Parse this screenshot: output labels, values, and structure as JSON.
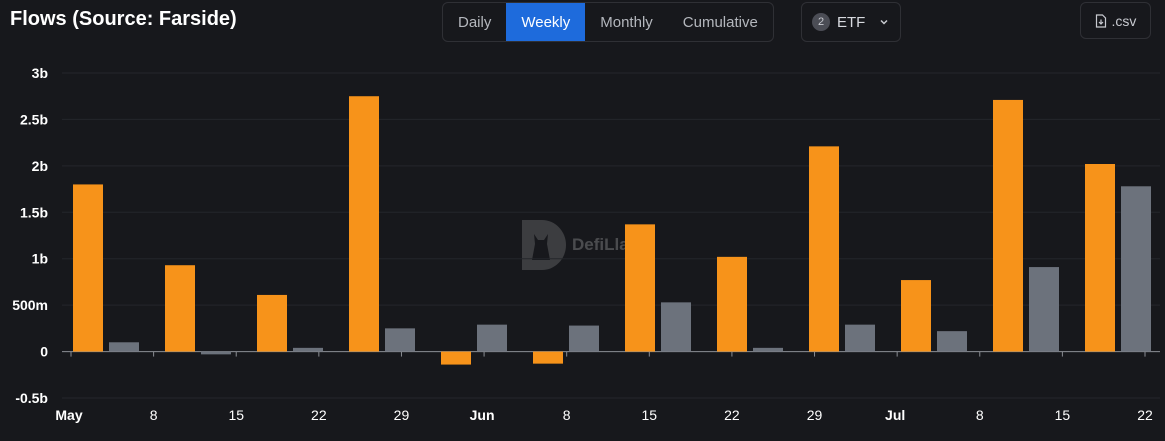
{
  "title": "Flows (Source: Farside)",
  "tabs": [
    {
      "label": "Daily",
      "active": false
    },
    {
      "label": "Weekly",
      "active": true
    },
    {
      "label": "Monthly",
      "active": false
    },
    {
      "label": "Cumulative",
      "active": false
    }
  ],
  "filter": {
    "count": "2",
    "label": "ETF",
    "icon": "chevron-down-icon"
  },
  "export": {
    "label": ".csv",
    "icon": "file-download-icon"
  },
  "watermark": "DefiLlama",
  "colors": {
    "series1": "#f7931a",
    "series2": "#6c727c",
    "background": "#17181c",
    "accent": "#1e6bdc"
  },
  "chart_data": {
    "type": "bar",
    "ylim": [
      -0.5,
      3
    ],
    "y_ticks": [
      {
        "value": 3,
        "label": "3b"
      },
      {
        "value": 2.5,
        "label": "2.5b"
      },
      {
        "value": 2,
        "label": "2b"
      },
      {
        "value": 1.5,
        "label": "1.5b"
      },
      {
        "value": 1,
        "label": "1b"
      },
      {
        "value": 0.5,
        "label": "500m"
      },
      {
        "value": 0,
        "label": "0"
      },
      {
        "value": -0.5,
        "label": "-0.5b"
      }
    ],
    "x_ticks": [
      {
        "label": "May",
        "bold": true
      },
      {
        "label": "8",
        "bold": false
      },
      {
        "label": "15",
        "bold": false
      },
      {
        "label": "22",
        "bold": false
      },
      {
        "label": "29",
        "bold": false
      },
      {
        "label": "Jun",
        "bold": true
      },
      {
        "label": "8",
        "bold": false
      },
      {
        "label": "15",
        "bold": false
      },
      {
        "label": "22",
        "bold": false
      },
      {
        "label": "29",
        "bold": false
      },
      {
        "label": "Jul",
        "bold": true
      },
      {
        "label": "8",
        "bold": false
      },
      {
        "label": "15",
        "bold": false
      },
      {
        "label": "22",
        "bold": false
      }
    ],
    "series": [
      {
        "values": [
          1.8,
          0.93,
          0.61,
          2.75,
          -0.14,
          -0.13,
          1.37,
          1.02,
          2.21,
          0.77,
          2.71,
          2.02
        ]
      },
      {
        "values": [
          0.1,
          -0.03,
          0.04,
          0.25,
          0.29,
          0.28,
          0.53,
          0.04,
          0.29,
          0.22,
          0.91,
          1.78
        ]
      }
    ]
  }
}
